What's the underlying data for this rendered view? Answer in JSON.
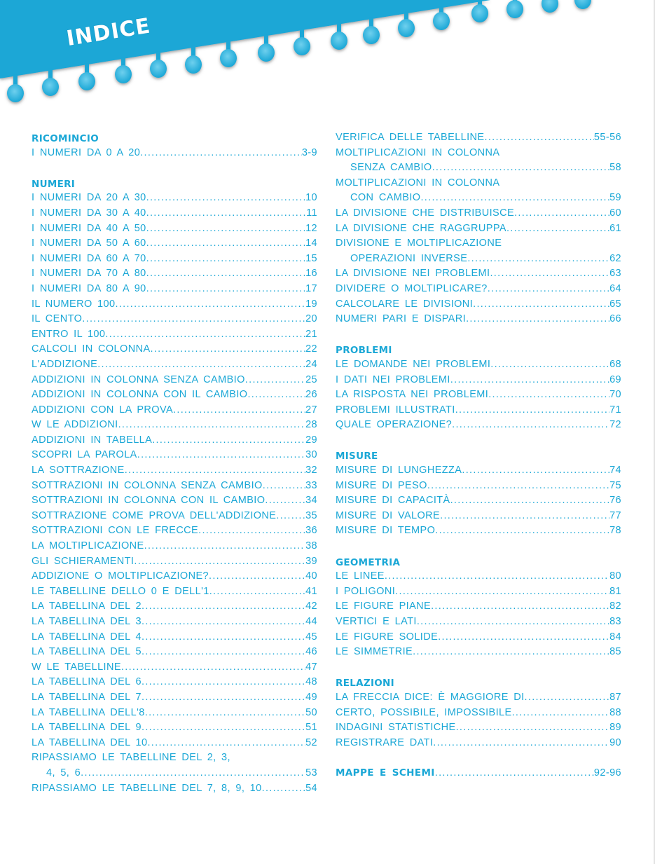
{
  "header": {
    "title": "INDICE",
    "band_color": "#1aa7d6"
  },
  "colors": {
    "text": "#1aa7d6"
  },
  "columns": [
    {
      "sections": [
        {
          "heading": "RICOMINCIO",
          "items": [
            {
              "label": "I NUMERI DA 0 A 20",
              "page": "3-9"
            }
          ]
        },
        {
          "heading": "NUMERI",
          "items": [
            {
              "label": "I NUMERI DA 20 A 30",
              "page": "10"
            },
            {
              "label": "I NUMERI DA 30 A 40",
              "page": "11"
            },
            {
              "label": "I NUMERI DA 40 A 50",
              "page": "12"
            },
            {
              "label": "I NUMERI DA 50 A 60",
              "page": "14"
            },
            {
              "label": "I NUMERI DA 60 A 70",
              "page": "15"
            },
            {
              "label": "I NUMERI DA 70 A 80",
              "page": "16"
            },
            {
              "label": "I NUMERI DA 80 A 90",
              "page": "17"
            },
            {
              "label": "IL NUMERO 100",
              "page": "19"
            },
            {
              "label": "IL CENTO",
              "page": "20"
            },
            {
              "label": "ENTRO IL 100",
              "page": "21"
            },
            {
              "label": "CALCOLI IN COLONNA",
              "page": "22"
            },
            {
              "label": "L'ADDIZIONE",
              "page": "24"
            },
            {
              "label": "ADDIZIONI IN COLONNA SENZA CAMBIO",
              "page": "25"
            },
            {
              "label": "ADDIZIONI IN COLONNA CON IL CAMBIO",
              "page": "26"
            },
            {
              "label": "ADDIZIONI CON LA PROVA",
              "page": "27"
            },
            {
              "label": "W LE ADDIZIONI",
              "page": "28"
            },
            {
              "label": "ADDIZIONI IN TABELLA",
              "page": "29"
            },
            {
              "label": "SCOPRI LA PAROLA",
              "page": "30"
            },
            {
              "label": "LA SOTTRAZIONE",
              "page": "32"
            },
            {
              "label": "SOTTRAZIONI IN COLONNA SENZA CAMBIO",
              "page": "33"
            },
            {
              "label": "SOTTRAZIONI IN COLONNA CON IL CAMBIO",
              "page": "34"
            },
            {
              "label": "SOTTRAZIONE COME PROVA DELL'ADDIZIONE",
              "page": "35"
            },
            {
              "label": "SOTTRAZIONI CON LE FRECCE",
              "page": "36"
            },
            {
              "label": "LA MOLTIPLICAZIONE",
              "page": "38"
            },
            {
              "label": "GLI SCHIERAMENTI",
              "page": "39"
            },
            {
              "label": "ADDIZIONE O MOLTIPLICAZIONE?",
              "page": "40"
            },
            {
              "label": "LE TABELLINE DELLO 0 E DELL'1",
              "page": "41"
            },
            {
              "label": "LA TABELLINA DEL 2",
              "page": "42"
            },
            {
              "label": "LA TABELLINA DEL 3",
              "page": "44"
            },
            {
              "label": "LA TABELLINA DEL 4",
              "page": "45"
            },
            {
              "label": "LA TABELLINA DEL 5",
              "page": "46"
            },
            {
              "label": "W LE TABELLINE",
              "page": "47"
            },
            {
              "label": "LA TABELLINA DEL 6",
              "page": "48"
            },
            {
              "label": "LA TABELLINA DEL 7",
              "page": "49"
            },
            {
              "label": "LA TABELLINA DELL'8",
              "page": "50"
            },
            {
              "label": "LA TABELLINA DEL 9",
              "page": "51"
            },
            {
              "label": "LA TABELLINA DEL 10",
              "page": "52"
            },
            {
              "label": "RIPASSIAMO LE TABELLINE DEL 2, 3,",
              "cont": "4, 5, 6",
              "page": "53"
            },
            {
              "label": "RIPASSIAMO LE TABELLINE DEL 7, 8, 9, 10",
              "page": "54"
            }
          ]
        }
      ]
    },
    {
      "sections": [
        {
          "heading": "",
          "items": [
            {
              "label": "VERIFICA DELLE TABELLINE",
              "page": "55-56"
            },
            {
              "label": "MOLTIPLICAZIONI IN COLONNA",
              "cont": "SENZA CAMBIO",
              "page": "58"
            },
            {
              "label": "MOLTIPLICAZIONI IN COLONNA",
              "cont": "CON CAMBIO",
              "page": "59"
            },
            {
              "label": "LA DIVISIONE CHE DISTRIBUISCE",
              "page": "60"
            },
            {
              "label": "LA DIVISIONE CHE RAGGRUPPA",
              "page": "61"
            },
            {
              "label": "DIVISIONE E MOLTIPLICAZIONE",
              "cont": "OPERAZIONI INVERSE",
              "page": "62"
            },
            {
              "label": "LA DIVISIONE NEI PROBLEMI",
              "page": "63"
            },
            {
              "label": "DIVIDERE O MOLTIPLICARE?",
              "page": "64"
            },
            {
              "label": "CALCOLARE LE DIVISIONI",
              "page": "65"
            },
            {
              "label": "NUMERI PARI E DISPARI",
              "page": "66"
            }
          ]
        },
        {
          "heading": "PROBLEMI",
          "items": [
            {
              "label": "LE DOMANDE NEI PROBLEMI",
              "page": "68"
            },
            {
              "label": "I DATI NEI PROBLEMI",
              "page": "69"
            },
            {
              "label": "LA RISPOSTA NEI PROBLEMI",
              "page": "70"
            },
            {
              "label": "PROBLEMI ILLUSTRATI",
              "page": "71"
            },
            {
              "label": "QUALE OPERAZIONE?",
              "page": "72"
            }
          ]
        },
        {
          "heading": "MISURE",
          "items": [
            {
              "label": "MISURE DI LUNGHEZZA",
              "page": "74"
            },
            {
              "label": "MISURE DI PESO",
              "page": "75"
            },
            {
              "label": "MISURE DI CAPACITÀ",
              "page": "76"
            },
            {
              "label": "MISURE DI VALORE",
              "page": "77"
            },
            {
              "label": "MISURE DI TEMPO",
              "page": "78"
            }
          ]
        },
        {
          "heading": "GEOMETRIA",
          "items": [
            {
              "label": "LE LINEE",
              "page": "80"
            },
            {
              "label": "I POLIGONI",
              "page": "81"
            },
            {
              "label": "LE FIGURE PIANE",
              "page": "82"
            },
            {
              "label": "VERTICI E LATI",
              "page": "83"
            },
            {
              "label": "LE FIGURE SOLIDE",
              "page": "84"
            },
            {
              "label": "LE SIMMETRIE",
              "page": "85"
            }
          ]
        },
        {
          "heading": "RELAZIONI",
          "items": [
            {
              "label": "LA FRECCIA DICE: È MAGGIORE DI",
              "page": "87"
            },
            {
              "label": "CERTO, POSSIBILE, IMPOSSIBILE",
              "page": "88"
            },
            {
              "label": "INDAGINI STATISTICHE",
              "page": "89"
            },
            {
              "label": "REGISTRARE DATI",
              "page": "90"
            }
          ]
        },
        {
          "heading": "",
          "items": [
            {
              "label": "MAPPE E SCHEMI",
              "page": "92-96",
              "bold": true
            }
          ]
        }
      ]
    }
  ]
}
